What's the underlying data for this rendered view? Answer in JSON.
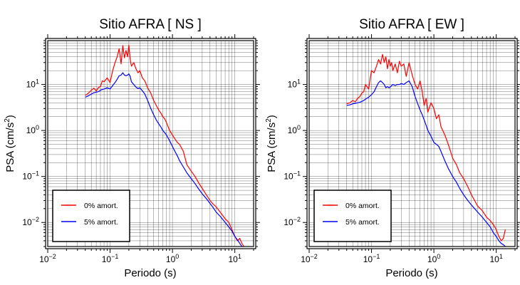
{
  "chart_data": [
    {
      "type": "line",
      "title": "Sitio AFRA [ NS ]",
      "xlabel": "Periodo (s)",
      "ylabel_main": "PSA (cm/s",
      "ylabel_sup": "2",
      "ylabel_tail": ")",
      "x_scale": "log",
      "y_scale": "log",
      "xlim": [
        0.01,
        20
      ],
      "ylim": [
        0.003,
        90
      ],
      "grid": true,
      "legend_position": "bottom-left",
      "x_ticks": [
        {
          "base": "10",
          "exp": "−2",
          "value": 0.01
        },
        {
          "base": "10",
          "exp": "−1",
          "value": 0.1
        },
        {
          "base": "10",
          "exp": "0",
          "value": 1
        },
        {
          "base": "10",
          "exp": "1",
          "value": 10
        }
      ],
      "y_ticks": [
        {
          "base": "10",
          "exp": "−2",
          "value": 0.01
        },
        {
          "base": "10",
          "exp": "−1",
          "value": 0.1
        },
        {
          "base": "10",
          "exp": "0",
          "value": 1
        },
        {
          "base": "10",
          "exp": "1",
          "value": 10
        }
      ],
      "series": [
        {
          "name": "0% amort.",
          "color": "#ff0000",
          "x": [
            0.04,
            0.045,
            0.05,
            0.055,
            0.06,
            0.065,
            0.07,
            0.075,
            0.08,
            0.09,
            0.1,
            0.11,
            0.12,
            0.13,
            0.14,
            0.15,
            0.16,
            0.17,
            0.18,
            0.19,
            0.2,
            0.21,
            0.22,
            0.24,
            0.26,
            0.28,
            0.3,
            0.33,
            0.36,
            0.4,
            0.45,
            0.5,
            0.55,
            0.6,
            0.65,
            0.7,
            0.75,
            0.8,
            0.9,
            1.0,
            1.1,
            1.2,
            1.3,
            1.5,
            1.7,
            2.0,
            2.3,
            2.6,
            3.0,
            3.5,
            4.0,
            4.5,
            5.0,
            6.0,
            7.0,
            8.0,
            9.0,
            10.0,
            11.0,
            12.0,
            13.0,
            14.0
          ],
          "y": [
            5.8,
            6.5,
            7.5,
            8.3,
            7.2,
            8.6,
            9.0,
            12.0,
            11.5,
            14.0,
            11.0,
            20.0,
            30.0,
            40.0,
            60.0,
            28.0,
            70.0,
            38.0,
            55.0,
            40.0,
            72.0,
            35.0,
            25.0,
            30.0,
            22.0,
            18.0,
            20.0,
            14.0,
            12.0,
            8.5,
            6.5,
            4.5,
            3.5,
            2.8,
            2.4,
            2.0,
            1.8,
            1.5,
            1.0,
            0.8,
            0.65,
            0.55,
            0.5,
            0.35,
            0.18,
            0.13,
            0.1,
            0.075,
            0.055,
            0.04,
            0.03,
            0.025,
            0.022,
            0.016,
            0.012,
            0.01,
            0.007,
            0.005,
            0.004,
            0.0045,
            0.0035,
            0.003
          ]
        },
        {
          "name": "5% amort.",
          "color": "#0000ff",
          "x": [
            0.04,
            0.045,
            0.05,
            0.055,
            0.06,
            0.065,
            0.07,
            0.075,
            0.08,
            0.09,
            0.1,
            0.11,
            0.12,
            0.13,
            0.14,
            0.15,
            0.16,
            0.17,
            0.18,
            0.19,
            0.2,
            0.21,
            0.22,
            0.24,
            0.26,
            0.28,
            0.3,
            0.33,
            0.36,
            0.4,
            0.45,
            0.5,
            0.55,
            0.6,
            0.65,
            0.7,
            0.75,
            0.8,
            0.9,
            1.0,
            1.1,
            1.2,
            1.3,
            1.5,
            1.7,
            2.0,
            2.3,
            2.6,
            3.0,
            3.5,
            4.0,
            4.5,
            5.0,
            6.0,
            7.0,
            8.0,
            9.0,
            10.0,
            11.0,
            12.0,
            13.0
          ],
          "y": [
            5.3,
            5.7,
            6.2,
            6.6,
            6.8,
            7.0,
            7.5,
            7.8,
            8.0,
            8.5,
            8.0,
            9.5,
            11.0,
            13.0,
            15.5,
            16.0,
            18.0,
            16.0,
            15.5,
            16.0,
            17.0,
            15.0,
            11.5,
            10.0,
            8.8,
            8.2,
            8.5,
            7.3,
            6.2,
            4.5,
            3.0,
            2.2,
            1.7,
            1.4,
            1.2,
            1.0,
            0.9,
            0.8,
            0.6,
            0.45,
            0.35,
            0.28,
            0.22,
            0.16,
            0.12,
            0.09,
            0.07,
            0.055,
            0.042,
            0.033,
            0.026,
            0.021,
            0.017,
            0.013,
            0.01,
            0.008,
            0.0065,
            0.005,
            0.0042,
            0.0035,
            0.003
          ]
        }
      ]
    },
    {
      "type": "line",
      "title": "Sitio AFRA [ EW ]",
      "xlabel": "Periodo (s)",
      "ylabel_main": "PSA (cm/s",
      "ylabel_sup": "2",
      "ylabel_tail": ")",
      "x_scale": "log",
      "y_scale": "log",
      "xlim": [
        0.01,
        20
      ],
      "ylim": [
        0.003,
        90
      ],
      "grid": true,
      "legend_position": "bottom-left",
      "x_ticks": [
        {
          "base": "10",
          "exp": "−2",
          "value": 0.01
        },
        {
          "base": "10",
          "exp": "−1",
          "value": 0.1
        },
        {
          "base": "10",
          "exp": "0",
          "value": 1
        },
        {
          "base": "10",
          "exp": "1",
          "value": 10
        }
      ],
      "y_ticks": [
        {
          "base": "10",
          "exp": "−2",
          "value": 0.01
        },
        {
          "base": "10",
          "exp": "−1",
          "value": 0.1
        },
        {
          "base": "10",
          "exp": "0",
          "value": 1
        },
        {
          "base": "10",
          "exp": "1",
          "value": 10
        }
      ],
      "series": [
        {
          "name": "0% amort.",
          "color": "#ff0000",
          "x": [
            0.04,
            0.045,
            0.05,
            0.055,
            0.06,
            0.065,
            0.07,
            0.075,
            0.08,
            0.09,
            0.1,
            0.11,
            0.12,
            0.13,
            0.14,
            0.15,
            0.16,
            0.17,
            0.18,
            0.19,
            0.2,
            0.21,
            0.22,
            0.24,
            0.26,
            0.28,
            0.3,
            0.33,
            0.36,
            0.4,
            0.45,
            0.5,
            0.55,
            0.6,
            0.65,
            0.7,
            0.75,
            0.8,
            0.9,
            1.0,
            1.1,
            1.2,
            1.3,
            1.5,
            1.7,
            2.0,
            2.3,
            2.6,
            3.0,
            3.5,
            4.0,
            4.5,
            5.0,
            6.0,
            7.0,
            8.0,
            9.0,
            10.0,
            11.0,
            12.0,
            13.0,
            14.0
          ],
          "y": [
            3.8,
            4.0,
            4.5,
            4.2,
            5.0,
            5.5,
            6.5,
            7.0,
            10.0,
            8.0,
            20.0,
            18.0,
            25.0,
            35.0,
            28.0,
            45.0,
            30.0,
            40.0,
            22.0,
            35.0,
            25.0,
            30.0,
            20.0,
            28.0,
            18.0,
            32.0,
            25.0,
            28.0,
            15.0,
            30.0,
            16.0,
            10.0,
            8.0,
            12.0,
            7.0,
            3.5,
            5.0,
            2.5,
            4.0,
            3.0,
            1.8,
            2.2,
            1.2,
            0.8,
            0.5,
            0.25,
            0.18,
            0.12,
            0.09,
            0.06,
            0.04,
            0.03,
            0.023,
            0.018,
            0.013,
            0.011,
            0.009,
            0.007,
            0.005,
            0.004,
            0.0045,
            0.007
          ]
        },
        {
          "name": "5% amort.",
          "color": "#0000ff",
          "x": [
            0.04,
            0.045,
            0.05,
            0.055,
            0.06,
            0.065,
            0.07,
            0.075,
            0.08,
            0.09,
            0.1,
            0.11,
            0.12,
            0.13,
            0.14,
            0.15,
            0.16,
            0.17,
            0.18,
            0.19,
            0.2,
            0.21,
            0.22,
            0.24,
            0.26,
            0.28,
            0.3,
            0.33,
            0.36,
            0.4,
            0.45,
            0.5,
            0.55,
            0.6,
            0.65,
            0.7,
            0.75,
            0.8,
            0.9,
            1.0,
            1.1,
            1.2,
            1.3,
            1.5,
            1.7,
            2.0,
            2.3,
            2.6,
            3.0,
            3.5,
            4.0,
            4.5,
            5.0,
            6.0,
            7.0,
            8.0,
            9.0,
            10.0,
            11.0,
            12.0,
            13.0,
            14.0
          ],
          "y": [
            3.5,
            3.6,
            3.8,
            3.9,
            4.0,
            4.1,
            4.3,
            4.5,
            4.8,
            5.3,
            6.0,
            7.0,
            9.0,
            11.0,
            12.0,
            11.0,
            10.0,
            8.5,
            9.0,
            8.5,
            8.8,
            9.5,
            10.0,
            9.5,
            10.0,
            10.0,
            10.5,
            10.0,
            11.0,
            12.0,
            9.0,
            5.5,
            3.8,
            2.8,
            2.2,
            1.7,
            1.3,
            1.0,
            0.75,
            0.55,
            0.5,
            0.45,
            0.35,
            0.22,
            0.15,
            0.1,
            0.075,
            0.055,
            0.04,
            0.03,
            0.024,
            0.02,
            0.017,
            0.013,
            0.01,
            0.008,
            0.006,
            0.005,
            0.004,
            0.0035,
            0.0033,
            0.003
          ]
        }
      ]
    }
  ]
}
